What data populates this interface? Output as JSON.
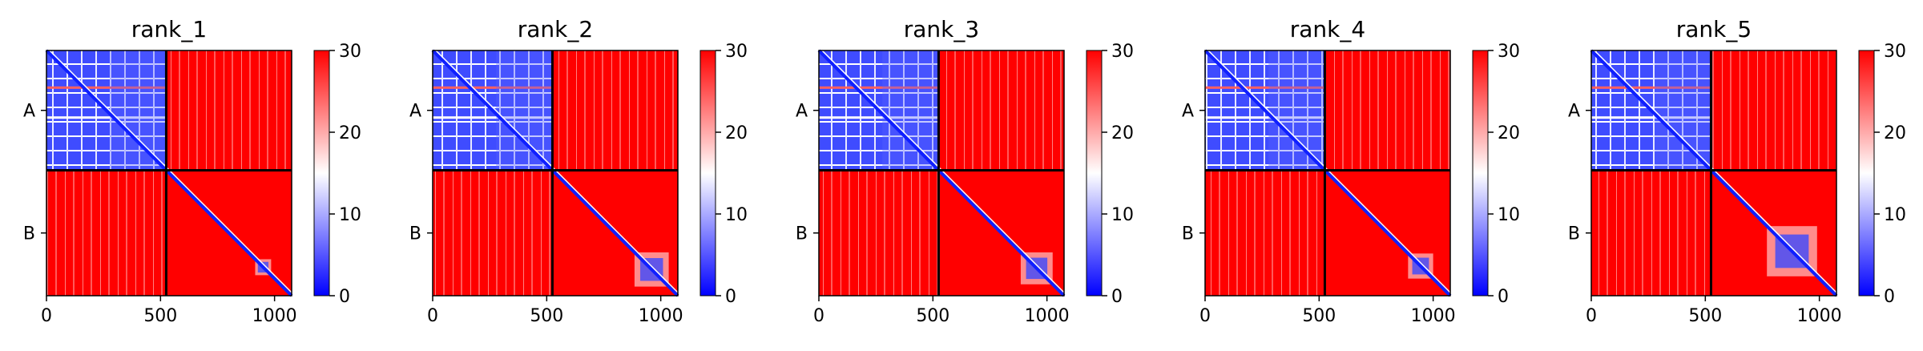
{
  "figure": {
    "count": 5
  },
  "chart_data": [
    {
      "type": "heatmap",
      "title": "rank_1",
      "x_ticks": [
        0,
        500,
        1000
      ],
      "y_tick_labels": [
        "A",
        "B"
      ],
      "chains": [
        {
          "name": "A",
          "start": 0,
          "end": 525
        },
        {
          "name": "B",
          "start": 525,
          "end": 1075
        }
      ],
      "matrix_size": 1075,
      "colorbar": {
        "min": 0,
        "max": 30,
        "ticks": [
          0,
          10,
          20,
          30
        ],
        "colors": [
          "#0000ff",
          "#ffffff",
          "#ff0000"
        ]
      },
      "regions": {
        "A_A": "mostly blue (low error) with white/red stripes",
        "A_B": "red (~30)",
        "B_A": "red (~30)",
        "B_B": "red with blue diagonal; blue cluster near 900-1000"
      },
      "blob_center": 950,
      "blob_size": 70
    },
    {
      "type": "heatmap",
      "title": "rank_2",
      "x_ticks": [
        0,
        500,
        1000
      ],
      "y_tick_labels": [
        "A",
        "B"
      ],
      "chains": [
        {
          "name": "A",
          "start": 0,
          "end": 525
        },
        {
          "name": "B",
          "start": 525,
          "end": 1075
        }
      ],
      "matrix_size": 1075,
      "colorbar": {
        "min": 0,
        "max": 30,
        "ticks": [
          0,
          10,
          20,
          30
        ],
        "colors": [
          "#0000ff",
          "#ffffff",
          "#ff0000"
        ]
      },
      "regions": {
        "A_A": "mostly blue (low error) with white/red stripes",
        "A_B": "red (~30)",
        "B_A": "red (~30)",
        "B_B": "red with blue diagonal; blue cluster near 900-1050"
      },
      "blob_center": 960,
      "blob_size": 150
    },
    {
      "type": "heatmap",
      "title": "rank_3",
      "x_ticks": [
        0,
        500,
        1000
      ],
      "y_tick_labels": [
        "A",
        "B"
      ],
      "chains": [
        {
          "name": "A",
          "start": 0,
          "end": 525
        },
        {
          "name": "B",
          "start": 525,
          "end": 1075
        }
      ],
      "matrix_size": 1075,
      "colorbar": {
        "min": 0,
        "max": 30,
        "ticks": [
          0,
          10,
          20,
          30
        ],
        "colors": [
          "#0000ff",
          "#ffffff",
          "#ff0000"
        ]
      },
      "regions": {
        "A_A": "mostly blue (low error) with white/red stripes",
        "A_B": "red (~30)",
        "B_A": "red (~30)",
        "B_B": "red with blue diagonal; blue cluster near 850-1050"
      },
      "blob_center": 955,
      "blob_size": 140
    },
    {
      "type": "heatmap",
      "title": "rank_4",
      "x_ticks": [
        0,
        500,
        1000
      ],
      "y_tick_labels": [
        "A",
        "B"
      ],
      "chains": [
        {
          "name": "A",
          "start": 0,
          "end": 525
        },
        {
          "name": "B",
          "start": 525,
          "end": 1075
        }
      ],
      "matrix_size": 1075,
      "colorbar": {
        "min": 0,
        "max": 30,
        "ticks": [
          0,
          10,
          20,
          30
        ],
        "colors": [
          "#0000ff",
          "#ffffff",
          "#ff0000"
        ]
      },
      "regions": {
        "A_A": "mostly blue (low error) with white/red stripes",
        "A_B": "red (~30)",
        "B_A": "red (~30)",
        "B_B": "red with blue diagonal; blue cluster near 850-1050"
      },
      "blob_center": 945,
      "blob_size": 110
    },
    {
      "type": "heatmap",
      "title": "rank_5",
      "x_ticks": [
        0,
        500,
        1000
      ],
      "y_tick_labels": [
        "A",
        "B"
      ],
      "chains": [
        {
          "name": "A",
          "start": 0,
          "end": 525
        },
        {
          "name": "B",
          "start": 525,
          "end": 1075
        }
      ],
      "matrix_size": 1075,
      "colorbar": {
        "min": 0,
        "max": 30,
        "ticks": [
          0,
          10,
          20,
          30
        ],
        "colors": [
          "#0000ff",
          "#ffffff",
          "#ff0000"
        ]
      },
      "regions": {
        "A_A": "mostly blue (low error) with white/red stripes",
        "A_B": "red (~30)",
        "B_A": "red (~30)",
        "B_B": "red with blue diagonal; large blue cluster near 750-1050"
      },
      "blob_center": 880,
      "blob_size": 220
    }
  ]
}
